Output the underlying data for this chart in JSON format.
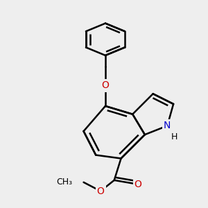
{
  "background_color": "#eeeeee",
  "line_color": "#000000",
  "bond_width": 1.8,
  "atom_colors": {
    "N": "#0000cc",
    "O": "#cc0000"
  },
  "font_size": 10,
  "fig_size": [
    3.0,
    3.0
  ],
  "dpi": 100,
  "xlim": [
    -1.5,
    3.5
  ],
  "ylim": [
    -3.2,
    3.8
  ]
}
